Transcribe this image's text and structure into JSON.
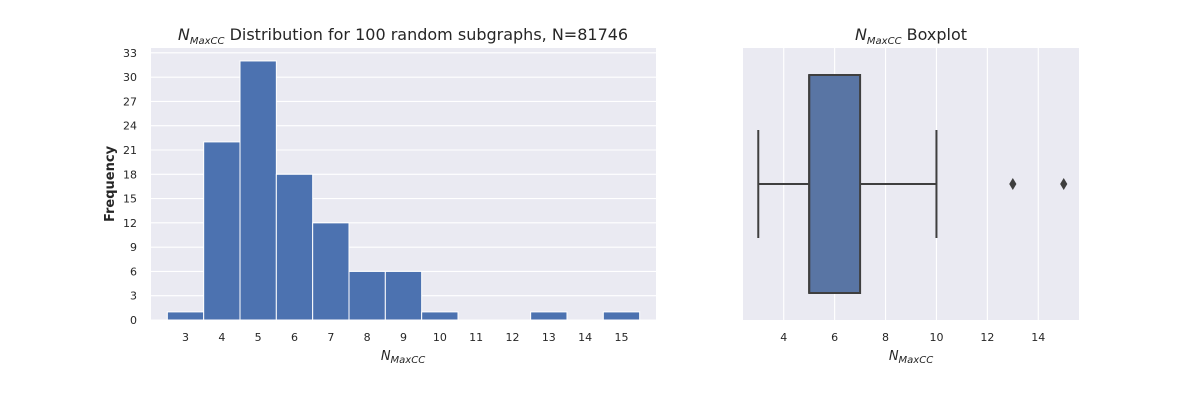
{
  "chart_data": [
    {
      "type": "bar",
      "title_symbol": "N",
      "title_subscript": "MaxCC",
      "title_rest": " Distribution for 100 random subgraphs, N=81746",
      "xlabel_symbol": "N",
      "xlabel_subscript": "MaxCC",
      "ylabel": "Frequency",
      "categories": [
        "3",
        "4",
        "5",
        "6",
        "7",
        "8",
        "9",
        "10",
        "11",
        "12",
        "13",
        "14",
        "15"
      ],
      "values": [
        1,
        22,
        32,
        18,
        12,
        6,
        6,
        1,
        0,
        0,
        1,
        0,
        1
      ],
      "yticks": [
        0,
        3,
        6,
        9,
        12,
        15,
        18,
        21,
        24,
        27,
        30,
        33
      ],
      "ylim": [
        0,
        33.6
      ],
      "grid": true,
      "bar_color": "#4c72b0"
    },
    {
      "type": "boxplot",
      "title_symbol": "N",
      "title_subscript": "MaxCC",
      "title_rest": " Boxplot",
      "xlabel_symbol": "N",
      "xlabel_subscript": "MaxCC",
      "xticks": [
        4,
        6,
        8,
        10,
        12,
        14
      ],
      "xlim": [
        2.4,
        15.6
      ],
      "stats": {
        "whisker_low": 3,
        "q1": 5,
        "median": 5,
        "q3": 7,
        "whisker_high": 10
      },
      "outliers": [
        13,
        15
      ],
      "grid": true,
      "box_color": "#5975a4",
      "line_color": "#3f3f3f"
    }
  ]
}
